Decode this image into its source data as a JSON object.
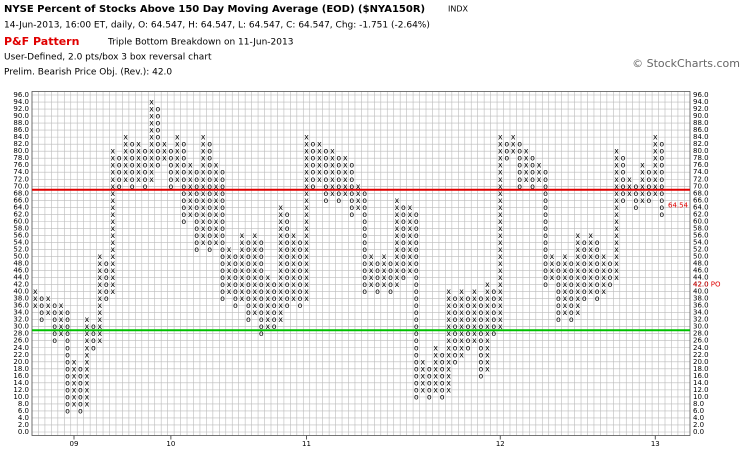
{
  "chart_data": {
    "type": "point-and-figure",
    "title": "NYSE Percent of Stocks Above 150 Day Moving Average (EOD) ($NYA150R)",
    "exchange": "INDX",
    "quote": "14-Jun-2013, 16:00 ET, daily, O: 64.547, H: 64.547, L: 64.547, C: 64.547, Chg: -1.751 (-2.64%)",
    "pattern_label": "P&F Pattern",
    "pattern": "Triple Bottom Breakdown on 11-Jun-2013",
    "settings": "User-Defined, 2.0 pts/box 3 box reversal chart",
    "objective": "Prelim. Bearish Price Obj. (Rev.): 42.0",
    "copyright": "© StockCharts.com",
    "ylim": [
      0,
      96
    ],
    "yticks": [
      {
        "value": 0,
        "label": "0.0"
      },
      {
        "value": 2,
        "label": "2.0"
      },
      {
        "value": 4,
        "label": "4.0"
      },
      {
        "value": 6,
        "label": "6.0"
      },
      {
        "value": 8,
        "label": "8.0"
      },
      {
        "value": 10,
        "label": "10.0"
      },
      {
        "value": 12,
        "label": "12.0"
      },
      {
        "value": 14,
        "label": "14.0"
      },
      {
        "value": 16,
        "label": "16.0"
      },
      {
        "value": 18,
        "label": "18.0"
      },
      {
        "value": 20,
        "label": "20.0"
      },
      {
        "value": 22,
        "label": "22.0"
      },
      {
        "value": 24,
        "label": "24.0"
      },
      {
        "value": 26,
        "label": "26.0"
      },
      {
        "value": 28,
        "label": "28.0"
      },
      {
        "value": 30,
        "label": "30.0"
      },
      {
        "value": 32,
        "label": "32.0"
      },
      {
        "value": 34,
        "label": "34.0"
      },
      {
        "value": 36,
        "label": "36.0"
      },
      {
        "value": 38,
        "label": "38.0"
      },
      {
        "value": 40,
        "label": "40.0"
      },
      {
        "value": 42,
        "label": "42.0"
      },
      {
        "value": 44,
        "label": "44.0"
      },
      {
        "value": 46,
        "label": "46.0"
      },
      {
        "value": 48,
        "label": "48.0"
      },
      {
        "value": 50,
        "label": "50.0"
      },
      {
        "value": 52,
        "label": "52.0"
      },
      {
        "value": 54,
        "label": "54.0"
      },
      {
        "value": 56,
        "label": "56.0"
      },
      {
        "value": 58,
        "label": "58.0"
      },
      {
        "value": 60,
        "label": "60.0"
      },
      {
        "value": 62,
        "label": "62.0"
      },
      {
        "value": 64,
        "label": "64.0"
      },
      {
        "value": 66,
        "label": "66.0"
      },
      {
        "value": 68,
        "label": "68.0"
      },
      {
        "value": 70,
        "label": "70.0"
      },
      {
        "value": 72,
        "label": "72.0"
      },
      {
        "value": 74,
        "label": "74.0"
      },
      {
        "value": 76,
        "label": "76.0"
      },
      {
        "value": 78,
        "label": "78.0"
      },
      {
        "value": 80,
        "label": "80.0"
      },
      {
        "value": 82,
        "label": "82.0"
      },
      {
        "value": 84,
        "label": "84.0"
      },
      {
        "value": 86,
        "label": "86.0"
      },
      {
        "value": 88,
        "label": "88.0"
      },
      {
        "value": 90,
        "label": "90.0"
      },
      {
        "value": 92,
        "label": "92.0"
      },
      {
        "value": 94,
        "label": "94.0"
      },
      {
        "value": 96,
        "label": "96.0"
      }
    ],
    "grid": true,
    "box_size": 2,
    "lines": [
      {
        "value": 69,
        "color": "#e00000"
      },
      {
        "value": 29,
        "color": "#00c000"
      }
    ],
    "price_objective": {
      "value": 42,
      "label": "42.0 PO",
      "color": "#e00000"
    },
    "last_price": {
      "value": 64.54,
      "label": "64.54",
      "color": "#e00000"
    },
    "columns": [
      {
        "type": "X",
        "low": 36,
        "high": 40
      },
      {
        "type": "O",
        "low": 32,
        "high": 38
      },
      {
        "type": "X",
        "low": 34,
        "high": 38
      },
      {
        "type": "O",
        "low": 26,
        "high": 36
      },
      {
        "type": "X",
        "low": 28,
        "high": 36
      },
      {
        "type": "O",
        "low": 6,
        "high": 34
      },
      {
        "type": "X",
        "low": 8,
        "high": 20,
        "year": "09"
      },
      {
        "type": "O",
        "low": 6,
        "high": 18
      },
      {
        "type": "X",
        "low": 8,
        "high": 32
      },
      {
        "type": "O",
        "low": 24,
        "high": 30
      },
      {
        "type": "X",
        "low": 26,
        "high": 50
      },
      {
        "type": "O",
        "low": 38,
        "high": 48
      },
      {
        "type": "X",
        "low": 40,
        "high": 80
      },
      {
        "type": "O",
        "low": 70,
        "high": 78
      },
      {
        "type": "X",
        "low": 72,
        "high": 84
      },
      {
        "type": "O",
        "low": 70,
        "high": 82
      },
      {
        "type": "X",
        "low": 72,
        "high": 82
      },
      {
        "type": "O",
        "low": 70,
        "high": 80
      },
      {
        "type": "X",
        "low": 72,
        "high": 94
      },
      {
        "type": "O",
        "low": 76,
        "high": 92
      },
      {
        "type": "X",
        "low": 78,
        "high": 82
      },
      {
        "type": "O",
        "low": 70,
        "high": 80,
        "year": "10"
      },
      {
        "type": "X",
        "low": 72,
        "high": 84
      },
      {
        "type": "O",
        "low": 60,
        "high": 82
      },
      {
        "type": "X",
        "low": 62,
        "high": 76
      },
      {
        "type": "O",
        "low": 52,
        "high": 74
      },
      {
        "type": "X",
        "low": 54,
        "high": 84
      },
      {
        "type": "O",
        "low": 52,
        "high": 82
      },
      {
        "type": "X",
        "low": 54,
        "high": 76
      },
      {
        "type": "O",
        "low": 38,
        "high": 74
      },
      {
        "type": "X",
        "low": 40,
        "high": 52
      },
      {
        "type": "O",
        "low": 36,
        "high": 50
      },
      {
        "type": "X",
        "low": 38,
        "high": 56
      },
      {
        "type": "O",
        "low": 32,
        "high": 54
      },
      {
        "type": "X",
        "low": 34,
        "high": 56
      },
      {
        "type": "O",
        "low": 28,
        "high": 54
      },
      {
        "type": "X",
        "low": 30,
        "high": 44
      },
      {
        "type": "O",
        "low": 30,
        "high": 42
      },
      {
        "type": "X",
        "low": 32,
        "high": 64
      },
      {
        "type": "O",
        "low": 36,
        "high": 62
      },
      {
        "type": "X",
        "low": 38,
        "high": 56
      },
      {
        "type": "O",
        "low": 36,
        "high": 54
      },
      {
        "type": "X",
        "low": 38,
        "high": 84,
        "year": "11"
      },
      {
        "type": "O",
        "low": 70,
        "high": 82
      },
      {
        "type": "X",
        "low": 72,
        "high": 82
      },
      {
        "type": "O",
        "low": 66,
        "high": 80
      },
      {
        "type": "X",
        "low": 68,
        "high": 80
      },
      {
        "type": "O",
        "low": 66,
        "high": 78
      },
      {
        "type": "X",
        "low": 68,
        "high": 78
      },
      {
        "type": "O",
        "low": 62,
        "high": 76
      },
      {
        "type": "X",
        "low": 64,
        "high": 70
      },
      {
        "type": "O",
        "low": 40,
        "high": 68
      },
      {
        "type": "X",
        "low": 42,
        "high": 50
      },
      {
        "type": "O",
        "low": 40,
        "high": 48
      },
      {
        "type": "X",
        "low": 42,
        "high": 50
      },
      {
        "type": "O",
        "low": 40,
        "high": 48
      },
      {
        "type": "X",
        "low": 42,
        "high": 66
      },
      {
        "type": "O",
        "low": 44,
        "high": 64
      },
      {
        "type": "X",
        "low": 46,
        "high": 64
      },
      {
        "type": "O",
        "low": 10,
        "high": 62
      },
      {
        "type": "X",
        "low": 12,
        "high": 20
      },
      {
        "type": "O",
        "low": 10,
        "high": 18
      },
      {
        "type": "X",
        "low": 12,
        "high": 24
      },
      {
        "type": "O",
        "low": 10,
        "high": 22
      },
      {
        "type": "X",
        "low": 12,
        "high": 40
      },
      {
        "type": "O",
        "low": 20,
        "high": 38
      },
      {
        "type": "X",
        "low": 22,
        "high": 40
      },
      {
        "type": "O",
        "low": 24,
        "high": 38
      },
      {
        "type": "X",
        "low": 26,
        "high": 40
      },
      {
        "type": "O",
        "low": 16,
        "high": 38
      },
      {
        "type": "X",
        "low": 18,
        "high": 42
      },
      {
        "type": "O",
        "low": 28,
        "high": 40
      },
      {
        "type": "X",
        "low": 30,
        "high": 84,
        "year": "12"
      },
      {
        "type": "O",
        "low": 78,
        "high": 82
      },
      {
        "type": "X",
        "low": 80,
        "high": 84
      },
      {
        "type": "O",
        "low": 70,
        "high": 82
      },
      {
        "type": "X",
        "low": 72,
        "high": 80
      },
      {
        "type": "O",
        "low": 70,
        "high": 78
      },
      {
        "type": "X",
        "low": 72,
        "high": 76
      },
      {
        "type": "O",
        "low": 42,
        "high": 74
      },
      {
        "type": "X",
        "low": 44,
        "high": 50
      },
      {
        "type": "O",
        "low": 32,
        "high": 48
      },
      {
        "type": "X",
        "low": 34,
        "high": 50
      },
      {
        "type": "O",
        "low": 32,
        "high": 48
      },
      {
        "type": "X",
        "low": 34,
        "high": 56
      },
      {
        "type": "O",
        "low": 38,
        "high": 54
      },
      {
        "type": "X",
        "low": 40,
        "high": 56
      },
      {
        "type": "O",
        "low": 38,
        "high": 54
      },
      {
        "type": "X",
        "low": 40,
        "high": 50
      },
      {
        "type": "O",
        "low": 42,
        "high": 48
      },
      {
        "type": "X",
        "low": 44,
        "high": 80
      },
      {
        "type": "O",
        "low": 66,
        "high": 78
      },
      {
        "type": "X",
        "low": 68,
        "high": 72
      },
      {
        "type": "O",
        "low": 64,
        "high": 70
      },
      {
        "type": "X",
        "low": 66,
        "high": 76
      },
      {
        "type": "O",
        "low": 66,
        "high": 74
      },
      {
        "type": "X",
        "low": 68,
        "high": 84,
        "year": "13"
      },
      {
        "type": "O",
        "low": 62,
        "high": 82
      }
    ]
  }
}
